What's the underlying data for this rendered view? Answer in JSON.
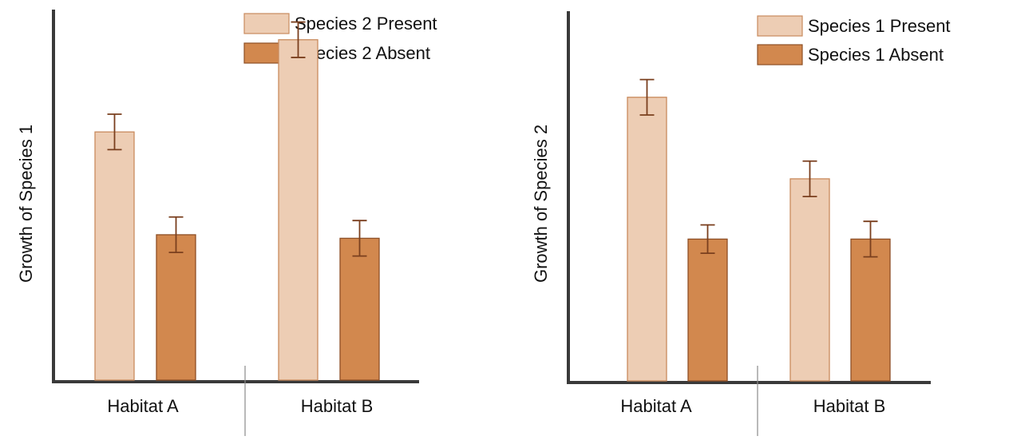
{
  "colors": {
    "present_fill": "#edcdb4",
    "present_stroke": "#c98a5d",
    "absent_fill": "#d2884e",
    "absent_stroke": "#8e4f25",
    "error_bar": "#7a3f1e",
    "axis": "#3a3a3a",
    "divider": "#8a8a8a"
  },
  "chart_data": [
    {
      "type": "bar",
      "title": "",
      "xlabel": "",
      "ylabel": "Growth of Species 1",
      "ylim": [
        0,
        100
      ],
      "yticks_shown": false,
      "legend_position": "top-right",
      "categories": [
        "Habitat A",
        "Habitat B"
      ],
      "series": [
        {
          "name": "Species 2 Present",
          "style": "present",
          "values": [
            70,
            96
          ],
          "errors": [
            5,
            5
          ]
        },
        {
          "name": "Species 2 Absent",
          "style": "absent",
          "values": [
            41,
            40
          ],
          "errors": [
            5,
            5
          ]
        }
      ]
    },
    {
      "type": "bar",
      "title": "",
      "xlabel": "",
      "ylabel": "Growth of Species 2",
      "ylim": [
        0,
        100
      ],
      "yticks_shown": false,
      "legend_position": "top-right",
      "categories": [
        "Habitat A",
        "Habitat B"
      ],
      "series": [
        {
          "name": "Species 1 Present",
          "style": "present",
          "values": [
            80,
            57
          ],
          "errors": [
            5,
            5
          ]
        },
        {
          "name": "Species 1 Absent",
          "style": "absent",
          "values": [
            40,
            40
          ],
          "errors": [
            4,
            5
          ]
        }
      ]
    }
  ]
}
